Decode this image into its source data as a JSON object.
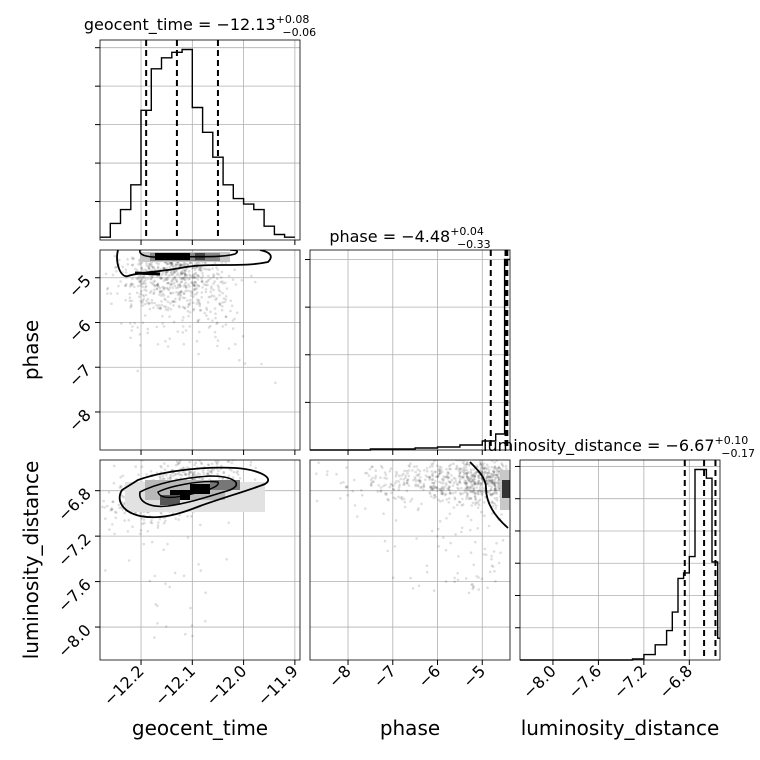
{
  "chart_data": {
    "type": "corner",
    "parameters": [
      "geocent_time",
      "phase",
      "luminosity_distance"
    ],
    "titles": [
      {
        "param": "geocent_time",
        "prefix": "geocent_time = ",
        "median": "−12.13",
        "plus": "+0.08",
        "minus": "−0.06"
      },
      {
        "param": "phase",
        "prefix": "phase = ",
        "median": "−4.48",
        "plus": "+0.04",
        "minus": "−0.33"
      },
      {
        "param": "luminosity_distance",
        "prefix": "luminosity_distance = ",
        "median": "−6.67",
        "plus": "+0.10",
        "minus": "−0.17"
      }
    ],
    "ranges": {
      "geocent_time": [
        -12.28,
        -11.89
      ],
      "phase": [
        -8.85,
        -4.38
      ],
      "luminosity_distance": [
        -8.29,
        -6.53
      ]
    },
    "ticks": {
      "geocent_time": {
        "values": [
          -12.2,
          -12.1,
          -12.0,
          -11.9
        ],
        "labels": [
          "−12.2",
          "−12.1",
          "−12.0",
          "−11.9"
        ]
      },
      "phase_x": {
        "values": [
          -8,
          -7,
          -6,
          -5
        ],
        "labels": [
          "−8",
          "−7",
          "−6",
          "−5"
        ]
      },
      "phase_y": {
        "values": [
          -8,
          -7,
          -6,
          -5
        ],
        "labels": [
          "−8",
          "−7",
          "−6",
          "−5"
        ]
      },
      "luminosity_distance_x": {
        "values": [
          -8.0,
          -7.6,
          -7.2,
          -6.8
        ],
        "labels": [
          "−8.0",
          "−7.6",
          "−7.2",
          "−6.8"
        ]
      },
      "luminosity_distance_y": {
        "values": [
          -8.0,
          -7.6,
          -7.2,
          -6.8
        ],
        "labels": [
          "−8.0",
          "−7.6",
          "−7.2",
          "−6.8"
        ]
      }
    },
    "quantiles": {
      "geocent_time": [
        -12.19,
        -12.13,
        -12.05
      ],
      "phase": [
        -4.81,
        -4.48,
        -4.44
      ],
      "luminosity_distance": [
        -6.84,
        -6.67,
        -6.57
      ]
    },
    "hist_geocent_time": {
      "edges": [
        -12.28,
        -12.26,
        -12.24,
        -12.22,
        -12.2,
        -12.18,
        -12.16,
        -12.14,
        -12.12,
        -12.1,
        -12.08,
        -12.06,
        -12.04,
        -12.02,
        -12.0,
        -11.98,
        -11.96,
        -11.94,
        -11.92,
        -11.9
      ],
      "counts": [
        1,
        6,
        11,
        20,
        47,
        62,
        66,
        68,
        69,
        48,
        39,
        30,
        20,
        15,
        13,
        11,
        5,
        2,
        1
      ]
    },
    "hist_phase": {
      "edges": [
        -8.85,
        -8.5,
        -8.0,
        -7.5,
        -7.0,
        -6.5,
        -6.0,
        -5.5,
        -5.0,
        -4.7,
        -4.5,
        -4.44,
        -4.38
      ],
      "counts": [
        0,
        0,
        0,
        1,
        1,
        2,
        3,
        5,
        9,
        16,
        190,
        190
      ]
    },
    "hist_luminosity_distance": {
      "edges": [
        -8.29,
        -7.3,
        -7.2,
        -7.1,
        -7.0,
        -6.95,
        -6.9,
        -6.85,
        -6.8,
        -6.75,
        -6.7,
        -6.65,
        -6.6,
        -6.55,
        -6.53
      ],
      "counts": [
        0,
        1,
        5,
        14,
        27,
        44,
        75,
        80,
        95,
        175,
        175,
        167,
        90,
        20
      ]
    },
    "axis_labels": {
      "x": [
        "geocent_time",
        "phase",
        "luminosity_distance"
      ],
      "y": [
        "phase",
        "luminosity_distance"
      ]
    },
    "grid": true
  }
}
